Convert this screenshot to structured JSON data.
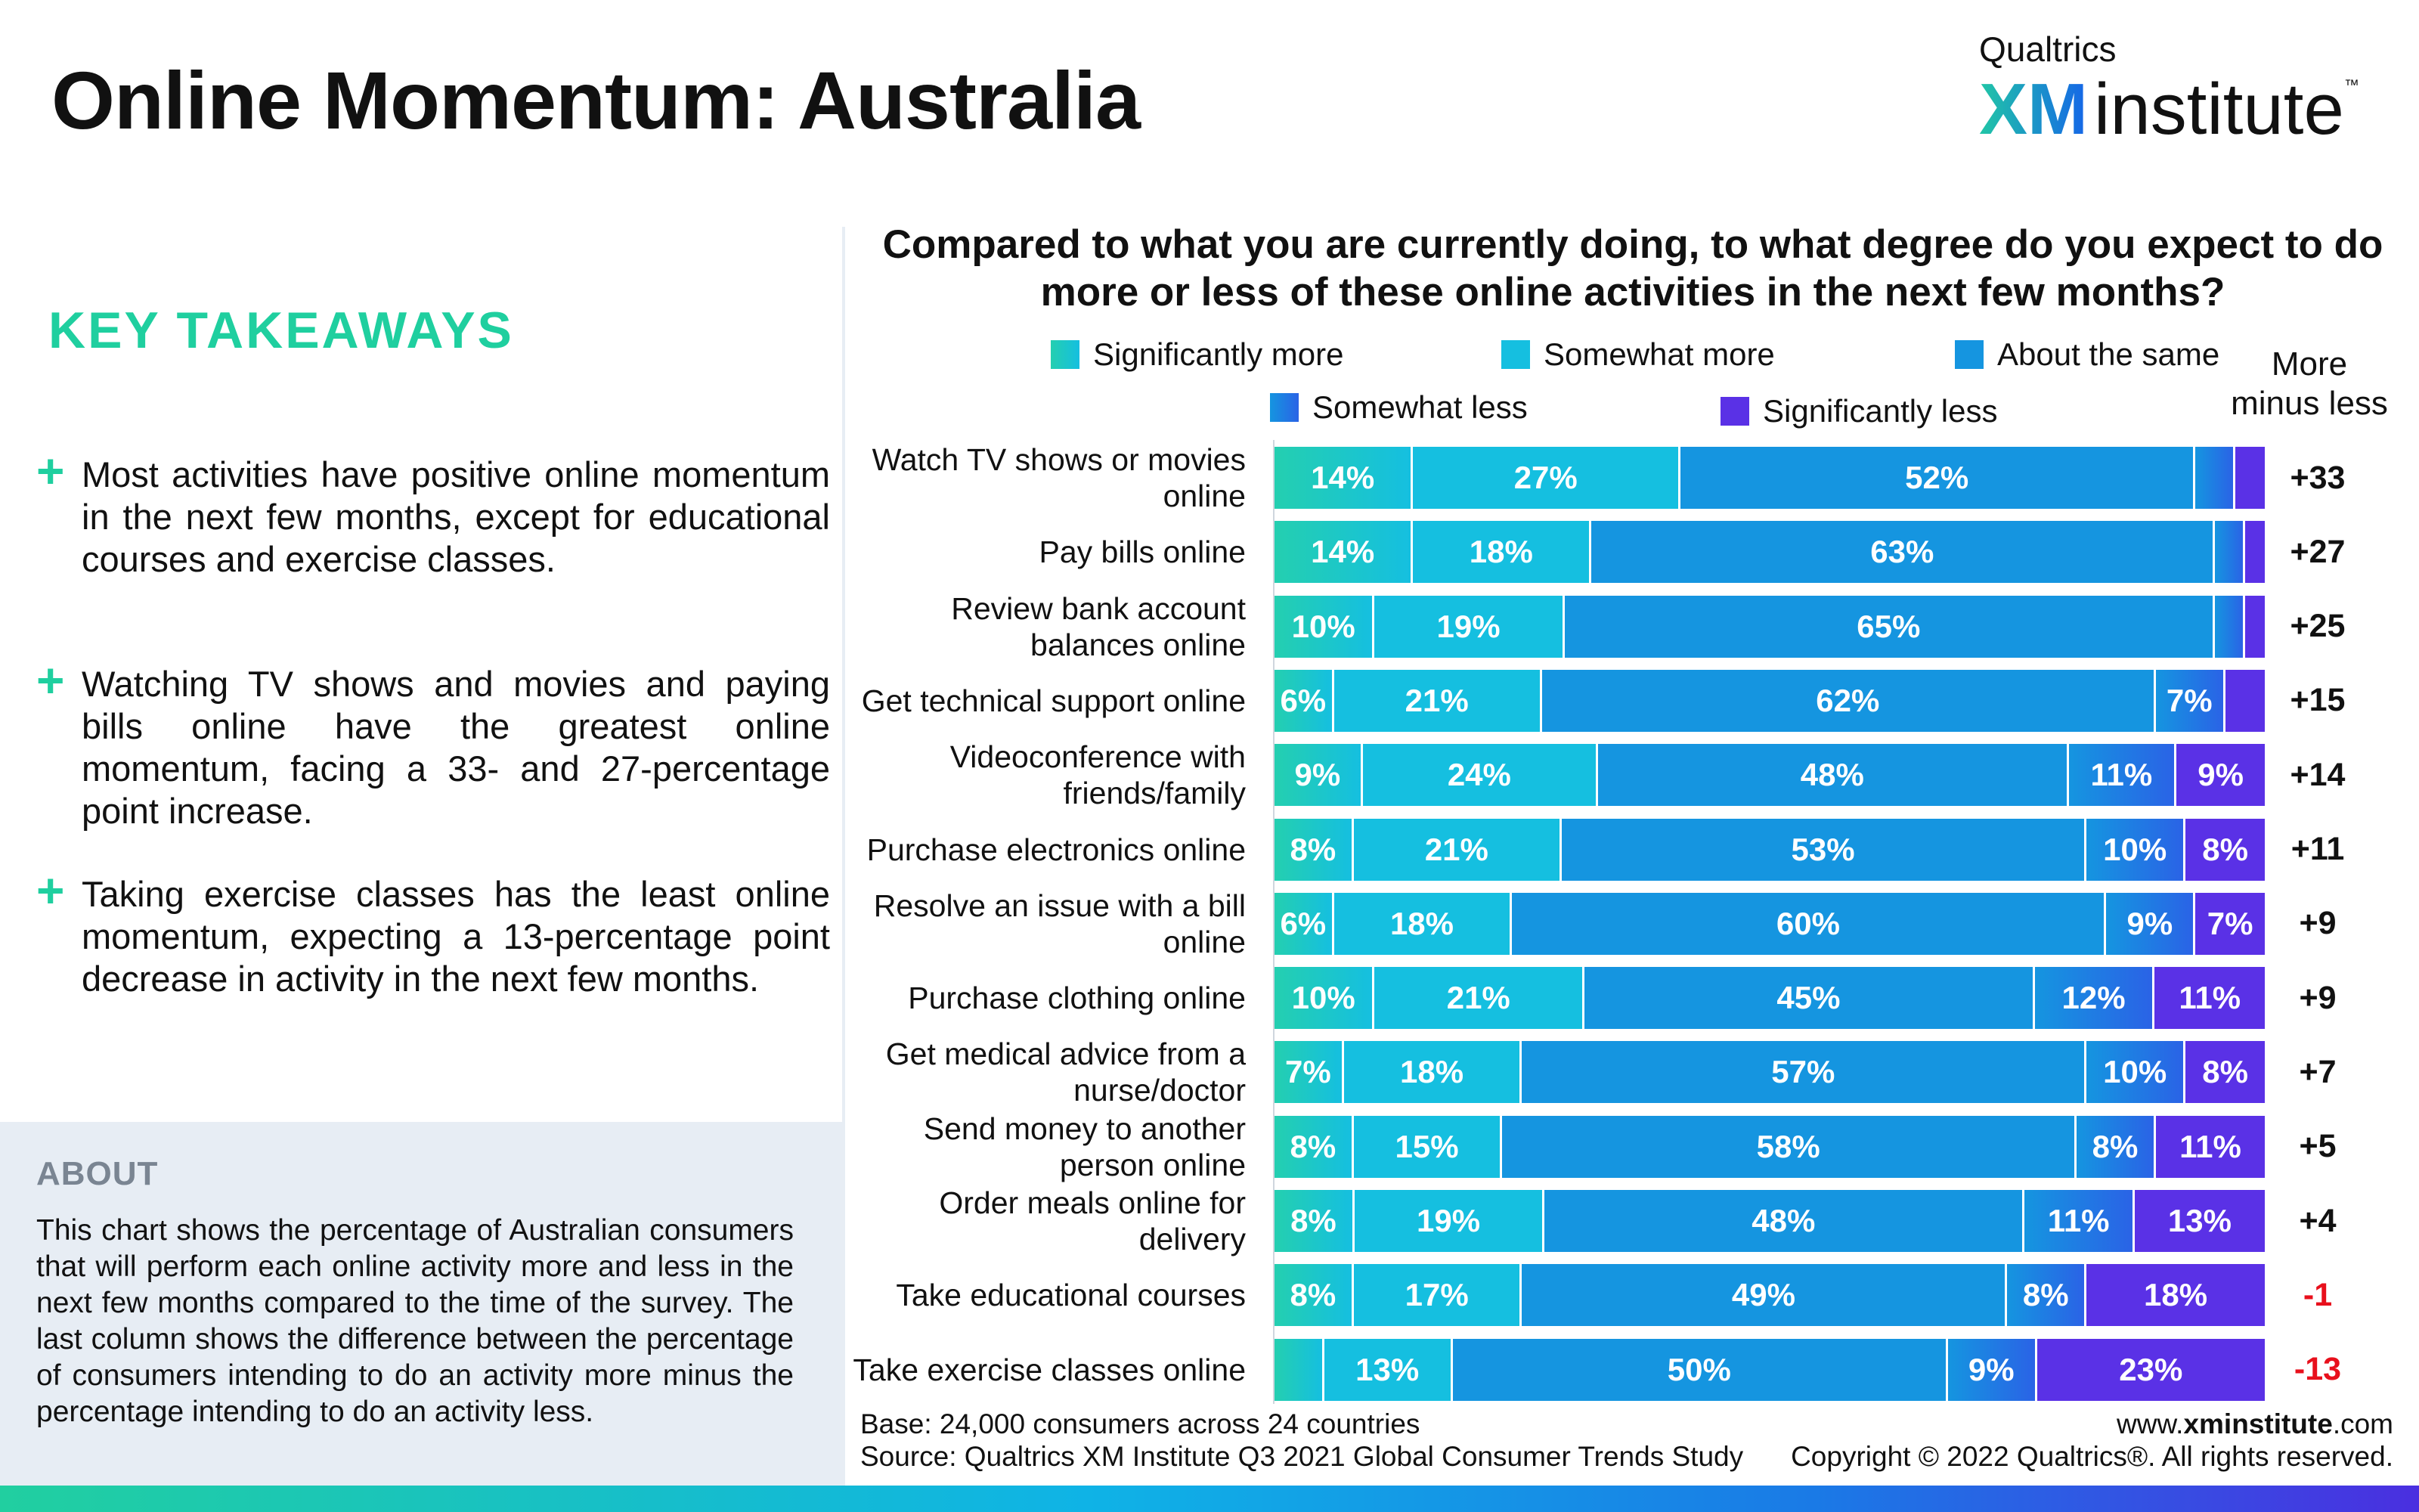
{
  "header": {
    "title": "Online Momentum: Australia",
    "logo_top": "Qualtrics",
    "logo_xm": "XM",
    "logo_rest": "institute",
    "logo_tm": "™"
  },
  "takeaways": {
    "heading": "KEY TAKEAWAYS",
    "plus_symbol": "+",
    "items": [
      "Most activities have positive online momentum in the next few months, except for educational courses and exercise classes.",
      "Watching TV shows and movies and paying bills online have the greatest online momentum, facing a 33- and 27-percentage point increase.",
      "Taking exercise classes has the least online momentum, expecting a 13-percentage point decrease in activity in the next few months."
    ]
  },
  "about": {
    "heading": "ABOUT",
    "text": "This chart shows the percentage of Australian consumers that will perform each online activity more and less in the next few months compared to the time of the survey. The last column shows the difference between the percentage of consumers intending to do an activity more minus the percentage intending to do an activity less."
  },
  "colors": {
    "significantly_more": "#24cfb0",
    "somewhat_more": "#15bfe0",
    "about_same": "#1595e0",
    "somewhat_less": "#2a63e6",
    "significantly_less": "#5a31e6",
    "positive": "#111111",
    "negative": "#e8101c"
  },
  "chart_data": {
    "type": "bar",
    "orientation": "horizontal-stacked",
    "title": "Compared to what you are currently doing, to what degree do you expect to do more or less of these online activities in the next few months?",
    "legend": [
      "Significantly more",
      "Somewhat more",
      "About the same",
      "Somewhat less",
      "Significantly less"
    ],
    "net_header": "More minus less",
    "categories": [
      "Watch TV shows or movies online",
      "Pay bills online",
      "Review bank account balances online",
      "Get technical support online",
      "Videoconference with friends/family",
      "Purchase electronics online",
      "Resolve an issue with a bill online",
      "Purchase clothing online",
      "Get medical advice from a nurse/doctor",
      "Send money to another person online",
      "Order meals online for delivery",
      "Take educational courses",
      "Take exercise classes online"
    ],
    "series": [
      {
        "name": "Significantly more",
        "values": [
          14,
          14,
          10,
          6,
          9,
          8,
          6,
          10,
          7,
          8,
          8,
          8,
          5
        ]
      },
      {
        "name": "Somewhat more",
        "values": [
          27,
          18,
          19,
          21,
          24,
          21,
          18,
          21,
          18,
          15,
          19,
          17,
          13
        ]
      },
      {
        "name": "About the same",
        "values": [
          52,
          63,
          65,
          62,
          48,
          53,
          60,
          45,
          57,
          58,
          48,
          49,
          50
        ]
      },
      {
        "name": "Somewhat less",
        "values": [
          4,
          3,
          3,
          7,
          11,
          10,
          9,
          12,
          10,
          8,
          11,
          8,
          9
        ]
      },
      {
        "name": "Significantly less",
        "values": [
          3,
          2,
          2,
          4,
          9,
          8,
          7,
          11,
          8,
          11,
          13,
          18,
          23
        ]
      }
    ],
    "labels": [
      [
        "14%",
        "27%",
        "52%",
        "",
        ""
      ],
      [
        "14%",
        "18%",
        "63%",
        "",
        ""
      ],
      [
        "10%",
        "19%",
        "65%",
        "",
        ""
      ],
      [
        "6%",
        "21%",
        "62%",
        "7%",
        ""
      ],
      [
        "9%",
        "24%",
        "48%",
        "11%",
        "9%"
      ],
      [
        "8%",
        "21%",
        "53%",
        "10%",
        "8%"
      ],
      [
        "6%",
        "18%",
        "60%",
        "9%",
        "7%"
      ],
      [
        "10%",
        "21%",
        "45%",
        "12%",
        "11%"
      ],
      [
        "7%",
        "18%",
        "57%",
        "10%",
        "8%"
      ],
      [
        "8%",
        "15%",
        "58%",
        "8%",
        "11%"
      ],
      [
        "8%",
        "19%",
        "48%",
        "11%",
        "13%"
      ],
      [
        "8%",
        "17%",
        "49%",
        "8%",
        "18%"
      ],
      [
        "",
        "13%",
        "50%",
        "9%",
        "23%"
      ]
    ],
    "net": [
      "+33",
      "+27",
      "+25",
      "+15",
      "+14",
      "+11",
      "+9",
      "+9",
      "+7",
      "+5",
      "+4",
      "-1",
      "-13"
    ]
  },
  "footer": {
    "base": "Base: 24,000 consumers across 24 countries",
    "source": "Source: Qualtrics XM Institute Q3 2021 Global Consumer Trends Study",
    "url_prefix": "www.",
    "url_bold": "xminstitute",
    "url_suffix": ".com",
    "copyright": "Copyright © 2022 Qualtrics®. All rights reserved."
  }
}
